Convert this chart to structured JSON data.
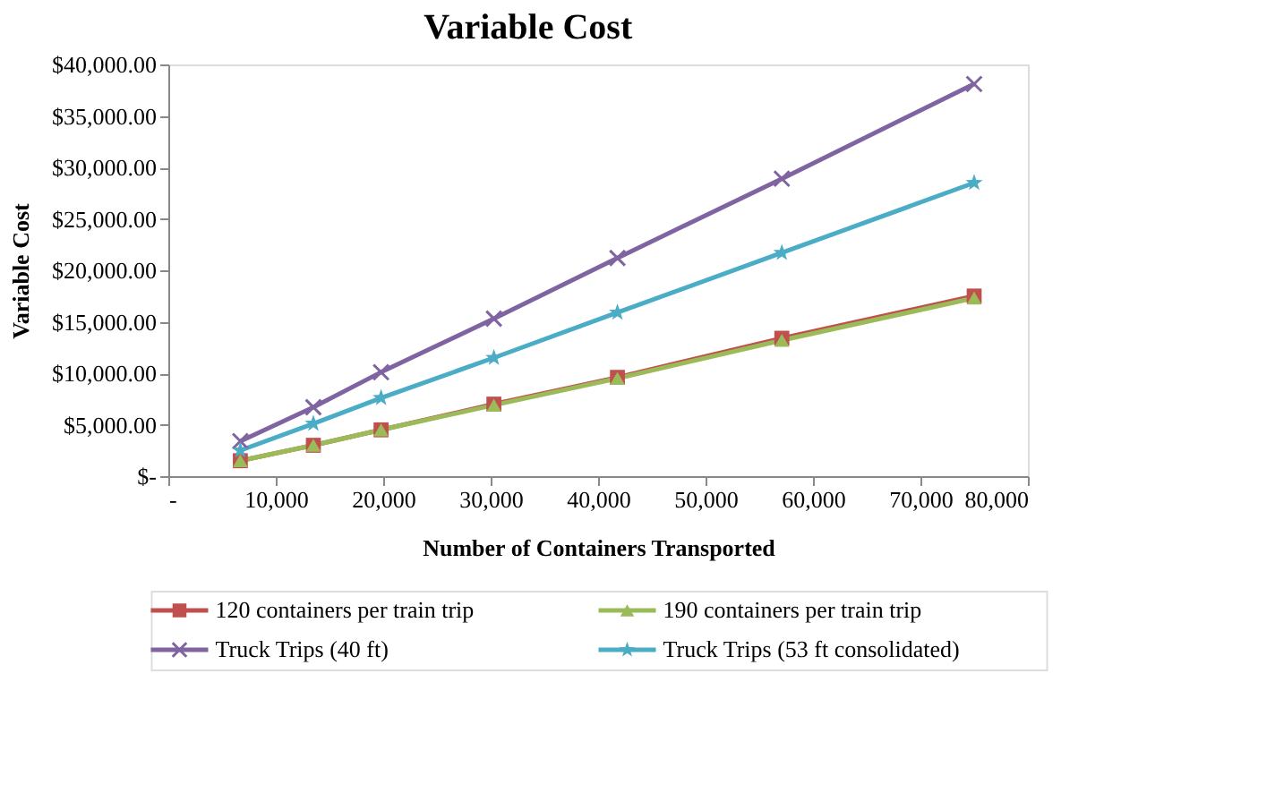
{
  "chart_data": {
    "type": "line",
    "title": "Variable Cost",
    "xlabel": "Number of Containers Transported",
    "ylabel": "Variable Cost",
    "x": [
      6700,
      13500,
      19800,
      30300,
      41800,
      57100,
      75000
    ],
    "xlim": [
      0,
      80000
    ],
    "xticks": [
      {
        "value": 0,
        "label": "-"
      },
      {
        "value": 10000,
        "label": "10,000"
      },
      {
        "value": 20000,
        "label": "20,000"
      },
      {
        "value": 30000,
        "label": "30,000"
      },
      {
        "value": 40000,
        "label": "40,000"
      },
      {
        "value": 50000,
        "label": "50,000"
      },
      {
        "value": 60000,
        "label": "60,000"
      },
      {
        "value": 70000,
        "label": "70,000"
      },
      {
        "value": 80000,
        "label": "80,000"
      }
    ],
    "ylim": [
      0,
      40000
    ],
    "yticks": [
      {
        "value": 0,
        "label": "$-"
      },
      {
        "value": 5000,
        "label": "$5,000.00"
      },
      {
        "value": 10000,
        "label": "$10,000.00"
      },
      {
        "value": 15000,
        "label": "$15,000.00"
      },
      {
        "value": 20000,
        "label": "$20,000.00"
      },
      {
        "value": 25000,
        "label": "$25,000.00"
      },
      {
        "value": 30000,
        "label": "$30,000.00"
      },
      {
        "value": 35000,
        "label": "$35,000.00"
      },
      {
        "value": 40000,
        "label": "$40,000.00"
      }
    ],
    "grid": false,
    "legend": "bottom",
    "line_style": "solid",
    "series": [
      {
        "name": "120 containers per train trip",
        "color": "#c0504d",
        "marker": "square",
        "values": [
          1500,
          3000,
          4500,
          7000,
          9600,
          13400,
          17500
        ]
      },
      {
        "name": "190 containers per train trip",
        "color": "#9bbb59",
        "marker": "triangle",
        "values": [
          1500,
          3000,
          4500,
          6900,
          9500,
          13200,
          17300
        ]
      },
      {
        "name": "Truck Trips (40 ft)",
        "color": "#8064a2",
        "marker": "cross",
        "values": [
          3400,
          6700,
          10100,
          15300,
          21200,
          28900,
          38100
        ]
      },
      {
        "name": "Truck Trips (53 ft consolidated)",
        "color": "#4bacc6",
        "marker": "star",
        "values": [
          2500,
          5100,
          7600,
          11500,
          15900,
          21700,
          28500
        ]
      }
    ]
  }
}
